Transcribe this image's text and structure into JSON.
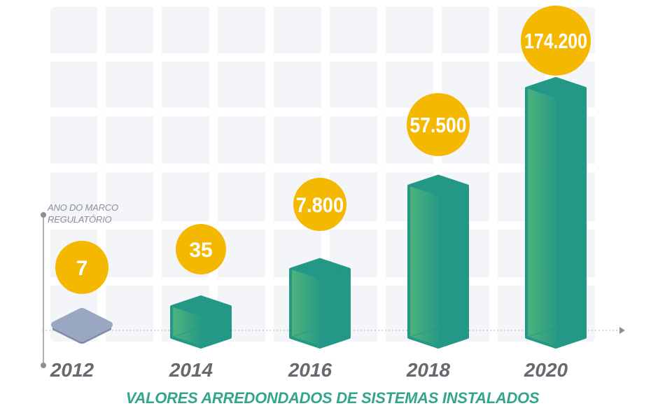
{
  "chart_data": {
    "type": "bar",
    "categories": [
      "2012",
      "2014",
      "2016",
      "2018",
      "2020"
    ],
    "values": [
      7,
      35,
      7800,
      57500,
      174200
    ],
    "value_labels": [
      "7",
      "35",
      "7.800",
      "57.500",
      "174.200"
    ],
    "xlabel": "VALORES ARREDONDADOS DE SISTEMAS INSTALADOS",
    "annotation": {
      "category": "2012",
      "lines": [
        "ANO DO MARCO",
        "REGULATÓRIO"
      ]
    },
    "grid": true,
    "highlight_color": "#9aa7c2"
  },
  "colors": {
    "bar_dark": "#249886",
    "bar_light": "#4fb37c",
    "label_circle": "#f5b800",
    "label_text": "#ffffff",
    "tick_text": "#666a70",
    "subtitle": "#34a58a",
    "axis": "#bfc3c8",
    "grid_cell": "#f4f5f9"
  }
}
